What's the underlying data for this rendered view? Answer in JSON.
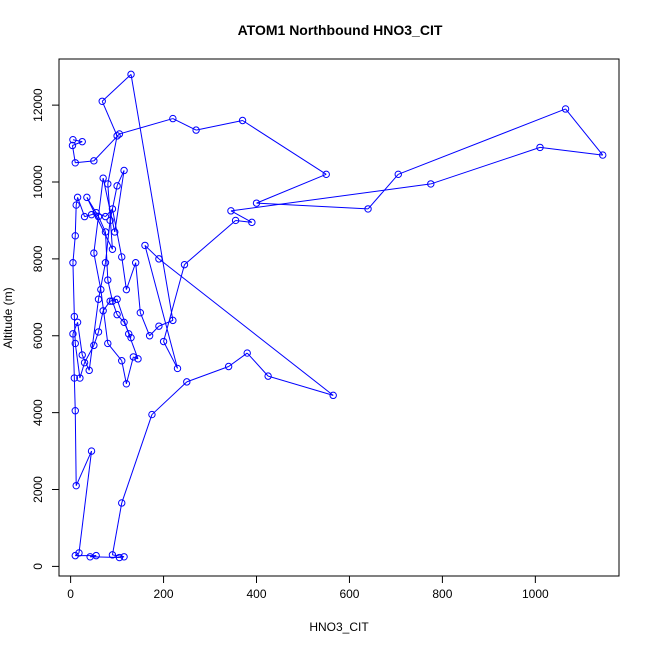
{
  "chart_data": {
    "type": "line",
    "title": "ATOM1 Northbound HNO3_CIT",
    "xlabel": "HNO3_CIT",
    "ylabel": "Altitude (m)",
    "xlim": [
      -25,
      1180
    ],
    "ylim": [
      -250,
      13200
    ],
    "x_ticks": [
      0,
      200,
      400,
      600,
      800,
      1000
    ],
    "y_ticks": [
      0,
      2000,
      4000,
      6000,
      8000,
      10000,
      12000
    ],
    "color": "#0000ff",
    "markers": "open-circle",
    "series": [
      {
        "points": [
          [
            5,
            11100
          ],
          [
            25,
            11050
          ],
          [
            4,
            10950
          ],
          [
            10,
            10500
          ],
          [
            50,
            10550
          ],
          [
            105,
            11250
          ],
          [
            220,
            11650
          ],
          [
            270,
            11350
          ],
          [
            370,
            11600
          ],
          [
            550,
            10200
          ],
          [
            400,
            9450
          ],
          [
            640,
            9300
          ],
          [
            705,
            10200
          ],
          [
            1065,
            11900
          ],
          [
            1145,
            10700
          ],
          [
            1010,
            10900
          ],
          [
            775,
            9950
          ],
          [
            345,
            9250
          ],
          [
            390,
            8950
          ],
          [
            355,
            9000
          ],
          [
            245,
            7850
          ],
          [
            200,
            5850
          ],
          [
            230,
            5150
          ],
          [
            160,
            8350
          ],
          [
            190,
            8000
          ],
          [
            565,
            4450
          ],
          [
            425,
            4950
          ],
          [
            380,
            5550
          ],
          [
            340,
            5200
          ],
          [
            250,
            4800
          ],
          [
            175,
            3950
          ],
          [
            110,
            1650
          ],
          [
            90,
            300
          ],
          [
            115,
            250
          ],
          [
            105,
            230
          ],
          [
            42,
            250
          ],
          [
            55,
            280
          ],
          [
            10,
            280
          ],
          [
            18,
            350
          ],
          [
            45,
            3000
          ],
          [
            12,
            2100
          ],
          [
            10,
            4050
          ],
          [
            8,
            4900
          ],
          [
            5,
            6050
          ],
          [
            15,
            6350
          ],
          [
            25,
            5500
          ],
          [
            40,
            5100
          ],
          [
            60,
            6950
          ],
          [
            75,
            7900
          ],
          [
            85,
            9000
          ],
          [
            100,
            9900
          ],
          [
            115,
            10300
          ],
          [
            95,
            8700
          ],
          [
            70,
            10100
          ],
          [
            50,
            8150
          ],
          [
            65,
            7200
          ],
          [
            80,
            5800
          ],
          [
            110,
            5350
          ],
          [
            120,
            4750
          ],
          [
            135,
            5450
          ],
          [
            145,
            5400
          ],
          [
            125,
            6050
          ],
          [
            100,
            6950
          ],
          [
            85,
            6900
          ],
          [
            70,
            6650
          ],
          [
            60,
            6100
          ],
          [
            50,
            5750
          ],
          [
            30,
            5300
          ],
          [
            20,
            4900
          ],
          [
            10,
            5800
          ],
          [
            8,
            6500
          ],
          [
            5,
            7900
          ],
          [
            10,
            8600
          ],
          [
            12,
            9400
          ],
          [
            15,
            9600
          ],
          [
            30,
            9100
          ],
          [
            45,
            9150
          ],
          [
            55,
            9200
          ],
          [
            75,
            9100
          ],
          [
            90,
            9300
          ],
          [
            110,
            8050
          ],
          [
            120,
            7200
          ],
          [
            140,
            7900
          ],
          [
            150,
            6600
          ],
          [
            170,
            6000
          ],
          [
            190,
            6250
          ],
          [
            220,
            6400
          ],
          [
            130,
            12800
          ],
          [
            68,
            12100
          ],
          [
            100,
            11200
          ],
          [
            80,
            9950
          ],
          [
            90,
            8250
          ],
          [
            35,
            9600
          ],
          [
            60,
            9100
          ],
          [
            75,
            8700
          ],
          [
            80,
            7450
          ],
          [
            90,
            6900
          ],
          [
            100,
            6550
          ],
          [
            115,
            6350
          ],
          [
            130,
            5950
          ]
        ]
      }
    ]
  }
}
